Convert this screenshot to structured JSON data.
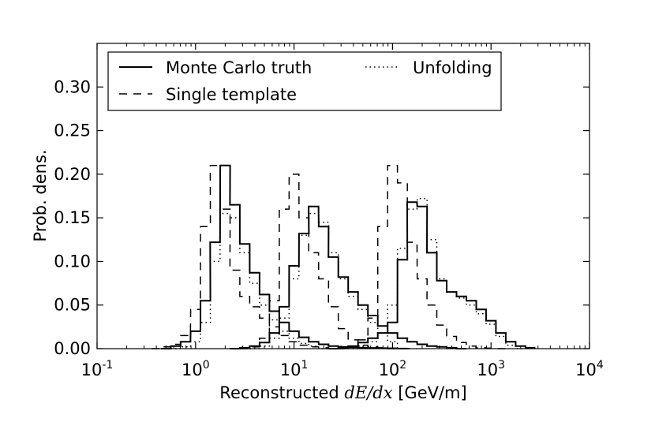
{
  "chart_data": {
    "type": "line",
    "xscale": "log",
    "xlim": [
      0.1,
      10000
    ],
    "ylim": [
      0,
      0.35
    ],
    "xlabel_prefix": "Reconstructed ",
    "xlabel_math": "dE/dx",
    "xlabel_suffix": " [GeV/m]",
    "ylabel": "Prob. dens.",
    "x_ticks": [
      {
        "base": "10",
        "exp": "-1"
      },
      {
        "base": "10",
        "exp": "0"
      },
      {
        "base": "10",
        "exp": "1"
      },
      {
        "base": "10",
        "exp": "2"
      },
      {
        "base": "10",
        "exp": "3"
      },
      {
        "base": "10",
        "exp": "4"
      }
    ],
    "y_ticks": [
      "0.00",
      "0.05",
      "0.10",
      "0.15",
      "0.20",
      "0.25",
      "0.30"
    ],
    "legend_position": "top",
    "grid": false,
    "series": [
      {
        "name": "Monte Carlo truth",
        "style": "solid",
        "groups": [
          {
            "x": [
              0.5,
              0.63,
              0.79,
              1.0,
              1.26,
              1.58,
              2.0,
              2.51,
              3.16,
              3.98,
              5.01,
              6.31,
              7.94,
              10.0,
              12.6,
              15.8,
              20.0,
              25.1,
              31.6,
              39.8,
              50.1,
              63.1,
              79.4,
              100,
              126
            ],
            "y": [
              0.0,
              0.003,
              0.008,
              0.02,
              0.055,
              0.122,
              0.21,
              0.165,
              0.12,
              0.087,
              0.062,
              0.043,
              0.03,
              0.02,
              0.013,
              0.008,
              0.005,
              0.003,
              0.002,
              0.0015,
              0.001,
              0.0008,
              0.0005,
              0.0003,
              0.0001
            ]
          },
          {
            "x": [
              2.5,
              3.16,
              3.98,
              5.01,
              6.31,
              7.94,
              10.0,
              12.6,
              15.8,
              20.0,
              25.1,
              31.6,
              39.8,
              50.1,
              63.1,
              79.4,
              100,
              126,
              158,
              200,
              251,
              316,
              398,
              501
            ],
            "y": [
              0.0,
              0.001,
              0.003,
              0.007,
              0.018,
              0.048,
              0.095,
              0.132,
              0.163,
              0.14,
              0.105,
              0.082,
              0.065,
              0.05,
              0.038,
              0.026,
              0.018,
              0.012,
              0.008,
              0.005,
              0.003,
              0.002,
              0.001,
              0.0
            ]
          },
          {
            "x": [
              25.1,
              31.6,
              39.8,
              50.1,
              63.1,
              79.4,
              100,
              126,
              158,
              200,
              251,
              316,
              398,
              501,
              631,
              794,
              1000,
              1259,
              1585,
              1995,
              2512
            ],
            "y": [
              0.0,
              0.001,
              0.003,
              0.007,
              0.012,
              0.018,
              0.03,
              0.102,
              0.168,
              0.163,
              0.11,
              0.078,
              0.065,
              0.06,
              0.055,
              0.045,
              0.032,
              0.018,
              0.008,
              0.003,
              0.001
            ]
          }
        ]
      },
      {
        "name": "Single template",
        "style": "dashed",
        "groups": [
          {
            "x": [
              0.4,
              0.5,
              0.63,
              0.79,
              1.0,
              1.26,
              1.58,
              2.0,
              2.51,
              3.16,
              3.98,
              5.01,
              6.31,
              7.94,
              10.0,
              12.6,
              15.8,
              20.0,
              25.1
            ],
            "y": [
              0.0,
              0.002,
              0.005,
              0.015,
              0.045,
              0.14,
              0.21,
              0.16,
              0.09,
              0.06,
              0.048,
              0.035,
              0.025,
              0.015,
              0.008,
              0.004,
              0.002,
              0.001,
              0.0
            ]
          },
          {
            "x": [
              3.16,
              3.98,
              5.01,
              6.31,
              7.94,
              10.0,
              12.6,
              15.8,
              20.0,
              25.1,
              31.6,
              39.8,
              50.1,
              63.1,
              79.4,
              100,
              126,
              158
            ],
            "y": [
              0.0,
              0.002,
              0.012,
              0.055,
              0.16,
              0.2,
              0.15,
              0.11,
              0.08,
              0.048,
              0.023,
              0.01,
              0.004,
              0.002,
              0.001,
              0.0005,
              0.0002,
              0.0
            ]
          },
          {
            "x": [
              31.6,
              39.8,
              50.1,
              63.1,
              79.4,
              100,
              126,
              158,
              200,
              251,
              316,
              398,
              501,
              631,
              794,
              1000,
              1259
            ],
            "y": [
              0.0,
              0.002,
              0.01,
              0.035,
              0.14,
              0.21,
              0.19,
              0.122,
              0.08,
              0.05,
              0.027,
              0.014,
              0.007,
              0.003,
              0.001,
              0.0005,
              0.0
            ]
          }
        ]
      },
      {
        "name": "Unfolding",
        "style": "dotted",
        "groups": [
          {
            "x": [
              0.63,
              0.79,
              1.0,
              1.26,
              1.58,
              2.0,
              2.51,
              3.16,
              3.98,
              5.01,
              6.31,
              7.94,
              10.0,
              12.6,
              15.8,
              20.0
            ],
            "y": [
              0.0,
              0.002,
              0.008,
              0.03,
              0.1,
              0.155,
              0.15,
              0.11,
              0.075,
              0.05,
              0.033,
              0.02,
              0.012,
              0.006,
              0.003,
              0.0
            ]
          },
          {
            "x": [
              3.98,
              5.01,
              6.31,
              7.94,
              10.0,
              12.6,
              15.8,
              20.0,
              25.1,
              31.6,
              39.8,
              50.1,
              63.1,
              79.4,
              100,
              126
            ],
            "y": [
              0.0,
              0.003,
              0.012,
              0.035,
              0.08,
              0.13,
              0.155,
              0.145,
              0.11,
              0.08,
              0.06,
              0.045,
              0.03,
              0.018,
              0.008,
              0.0
            ]
          },
          {
            "x": [
              39.8,
              50.1,
              63.1,
              79.4,
              100,
              126,
              158,
              200,
              251,
              316,
              398,
              501,
              631,
              794,
              1000,
              1259,
              1585,
              1995
            ],
            "y": [
              0.0,
              0.003,
              0.008,
              0.018,
              0.05,
              0.115,
              0.16,
              0.172,
              0.125,
              0.08,
              0.065,
              0.058,
              0.05,
              0.04,
              0.028,
              0.014,
              0.004,
              0.0
            ]
          }
        ]
      }
    ],
    "legend": [
      {
        "label": "Monte Carlo truth",
        "style": "solid"
      },
      {
        "label": "Unfolding",
        "style": "dotted"
      },
      {
        "label": "Single template",
        "style": "dashed"
      }
    ]
  }
}
